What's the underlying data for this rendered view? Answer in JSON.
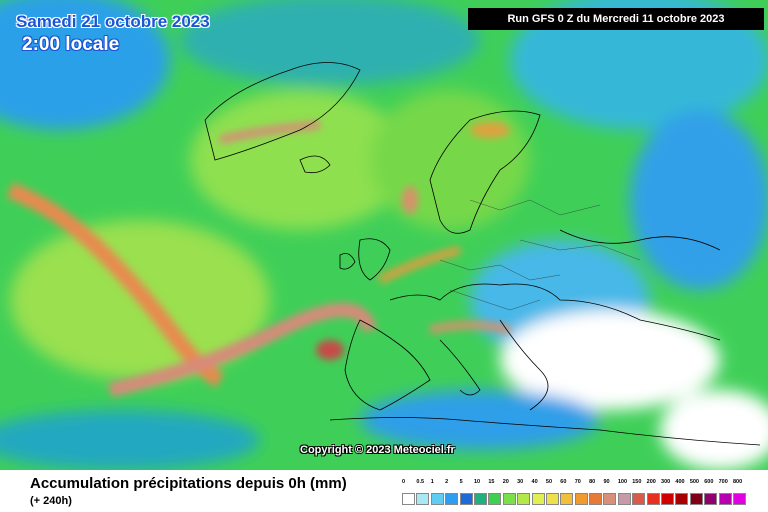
{
  "header": {
    "valid_date": "Samedi 21 octobre 2023",
    "valid_time": "2:00 locale",
    "run_info": "Run GFS 0 Z du Mercredi 11 octobre 2023"
  },
  "map": {
    "copyright": "Copyright © 2023 Meteociel.fr"
  },
  "footer": {
    "title": "Accumulation précipitations depuis 0h (mm)",
    "lead_time": "(+ 240h)"
  },
  "legend": {
    "labels": [
      "0",
      "0.5",
      "1",
      "2",
      "5",
      "10",
      "15",
      "20",
      "30",
      "40",
      "50",
      "60",
      "70",
      "80",
      "90",
      "100",
      "150",
      "200",
      "300",
      "400",
      "500",
      "600",
      "700",
      "800"
    ],
    "colors": [
      "#ffffff",
      "#a9e8f5",
      "#5fcdf2",
      "#2e9ff0",
      "#1e6bd8",
      "#1fb07e",
      "#3fd050",
      "#7ae04a",
      "#b2e84a",
      "#dff050",
      "#eee04a",
      "#f0c03a",
      "#f09a30",
      "#e87a38",
      "#d8907a",
      "#c89aa8",
      "#d85a4a",
      "#e83020",
      "#d00000",
      "#a80000",
      "#800018",
      "#900070",
      "#b800b0",
      "#e000e0"
    ]
  }
}
